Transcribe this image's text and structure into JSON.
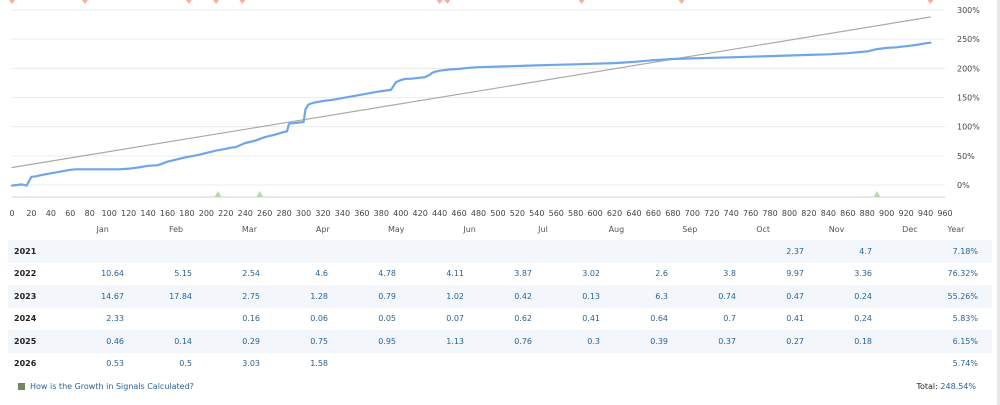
{
  "chart_data": {
    "type": "line",
    "x_ticks": [
      0,
      20,
      40,
      60,
      80,
      100,
      120,
      140,
      160,
      180,
      200,
      220,
      240,
      260,
      280,
      300,
      320,
      340,
      360,
      380,
      400,
      420,
      440,
      460,
      480,
      500,
      520,
      540,
      560,
      580,
      600,
      620,
      640,
      660,
      680,
      700,
      720,
      740,
      760,
      780,
      800,
      820,
      840,
      860,
      880,
      900,
      920,
      940,
      960
    ],
    "y_ticks": [
      "0%",
      "50%",
      "100%",
      "150%",
      "200%",
      "250%",
      "300%"
    ],
    "y_tick_values": [
      0,
      50,
      100,
      150,
      200,
      250,
      300
    ],
    "xlim": [
      0,
      960
    ],
    "ylim": [
      -15,
      310
    ],
    "grid": true,
    "series": [
      {
        "color": "#6ea6e8",
        "x": [
          0,
          5,
          10,
          15,
          17,
          20,
          25,
          30,
          40,
          50,
          60,
          65,
          70,
          80,
          90,
          100,
          110,
          120,
          130,
          140,
          150,
          160,
          170,
          180,
          190,
          200,
          210,
          220,
          225,
          230,
          240,
          250,
          260,
          270,
          280,
          283,
          285,
          287,
          290,
          300,
          302,
          305,
          310,
          320,
          330,
          340,
          350,
          360,
          370,
          380,
          385,
          390,
          395,
          400,
          405,
          410,
          420,
          425,
          430,
          432,
          435,
          440,
          450,
          460,
          470,
          480,
          500,
          520,
          540,
          560,
          580,
          600,
          620,
          640,
          660,
          680,
          700,
          720,
          740,
          760,
          780,
          800,
          820,
          840,
          860,
          880,
          890,
          900,
          910,
          920,
          930,
          940,
          945
        ],
        "y": [
          -1,
          0,
          1,
          -1,
          5,
          14,
          15,
          17,
          20,
          23,
          26,
          27,
          27,
          27,
          27,
          27,
          27,
          28,
          30,
          33,
          34,
          40,
          44,
          48,
          51,
          55,
          59,
          62,
          64,
          65,
          72,
          76,
          82,
          86,
          91,
          92,
          105,
          106,
          106,
          108,
          130,
          138,
          141,
          144,
          146,
          149,
          152,
          155,
          158,
          161,
          162,
          163,
          176,
          180,
          182,
          182,
          184,
          185,
          189,
          192,
          194,
          196,
          198,
          199,
          201,
          202,
          203,
          204,
          205,
          206,
          207,
          208,
          209,
          211,
          214,
          216,
          217,
          218,
          219,
          220,
          221,
          222,
          223,
          224,
          226,
          229,
          233,
          235,
          236,
          238,
          240,
          243,
          244
        ]
      },
      {
        "color": "#aaaaaa",
        "x": [
          0,
          945
        ],
        "y": [
          30,
          288
        ]
      }
    ],
    "top_markers_x": [
      0,
      75,
      182,
      210,
      237,
      440,
      448,
      586,
      689,
      945
    ],
    "bottom_markers_x": [
      212,
      255,
      890
    ]
  },
  "months": [
    "Jan",
    "Feb",
    "Mar",
    "Apr",
    "May",
    "Jun",
    "Jul",
    "Aug",
    "Sep",
    "Oct",
    "Nov",
    "Dec",
    "Year"
  ],
  "rows": [
    {
      "year": "2021",
      "values": [
        "",
        "",
        "",
        "",
        "",
        "",
        "",
        "",
        "",
        "",
        "2.37",
        "4.7"
      ],
      "total": "7.18%"
    },
    {
      "year": "2022",
      "values": [
        "10.64",
        "5.15",
        "2.54",
        "4.6",
        "4.78",
        "4.11",
        "3.87",
        "3.02",
        "2.6",
        "3.8",
        "9.97",
        "3.36"
      ],
      "total": "76.32%"
    },
    {
      "year": "2023",
      "values": [
        "14.67",
        "17.84",
        "2.75",
        "1.28",
        "0.79",
        "1.02",
        "0.42",
        "0.13",
        "6.3",
        "0.74",
        "0.47",
        "0.24"
      ],
      "total": "55.26%"
    },
    {
      "year": "2024",
      "values": [
        "2.33",
        "",
        "0.16",
        "0.06",
        "0.05",
        "0.07",
        "0.62",
        "0.41",
        "0.64",
        "0.7",
        "0.41",
        "0.24"
      ],
      "total": "5.83%"
    },
    {
      "year": "2025",
      "values": [
        "0.46",
        "0.14",
        "0.29",
        "0.75",
        "0.95",
        "1.13",
        "0.76",
        "0.3",
        "0.39",
        "0.37",
        "0.27",
        "0.18"
      ],
      "total": "6.15%"
    },
    {
      "year": "2026",
      "values": [
        "0.53",
        "0.5",
        "3.03",
        "1.58",
        "",
        "",
        "",
        "",
        "",
        "",
        "",
        ""
      ],
      "total": "5.74%"
    }
  ],
  "footer": {
    "link_text": "How is the Growth in Signals Calculated?",
    "total_label": "Total:",
    "total_value": "248.54%"
  }
}
